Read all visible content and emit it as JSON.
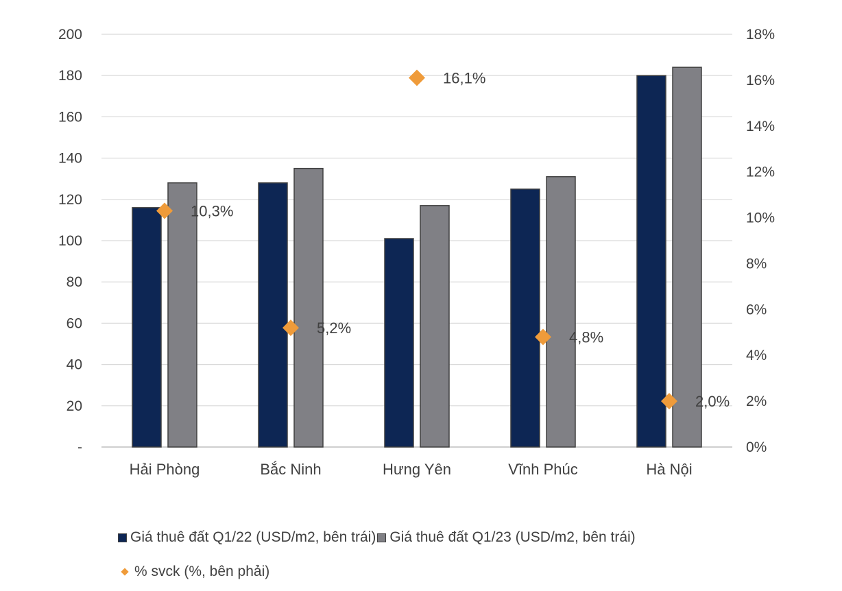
{
  "chart_data": {
    "type": "bar",
    "categories": [
      "Hải Phòng",
      "Bắc Ninh",
      "Hưng Yên",
      "Vĩnh Phúc",
      "Hà Nội"
    ],
    "series": [
      {
        "name": "Giá thuê đất Q1/22 (USD/m2, bên trái)",
        "values": [
          116,
          128,
          101,
          125,
          180
        ],
        "color": "#0d2654",
        "axis": "left"
      },
      {
        "name": "Giá thuê đất Q1/23 (USD/m2, bên trái)",
        "values": [
          128,
          135,
          117,
          131,
          184
        ],
        "color": "#808085",
        "axis": "left"
      },
      {
        "name": "% svck (%, bên phải)",
        "values": [
          10.3,
          5.2,
          16.1,
          4.8,
          2.0
        ],
        "labels": [
          "10,3%",
          "5,2%",
          "16,1%",
          "4,8%",
          "2,0%"
        ],
        "color": "#ef9b3a",
        "axis": "right",
        "marker": "diamond"
      }
    ],
    "y_left": {
      "ylim": [
        0,
        200
      ],
      "ticks": [
        "-",
        "20",
        "40",
        "60",
        "80",
        "100",
        "120",
        "140",
        "160",
        "180",
        "200"
      ]
    },
    "y_right": {
      "ylim": [
        0,
        18
      ],
      "ticks": [
        "0%",
        "2%",
        "4%",
        "6%",
        "8%",
        "10%",
        "12%",
        "14%",
        "16%",
        "18%"
      ]
    },
    "grid": true,
    "legend_position": "bottom"
  },
  "legend": {
    "q122": "Giá thuê đất Q1/22 (USD/m2, bên trái)",
    "q123": "Giá thuê đất Q1/23 (USD/m2, bên trái)",
    "svck": "% svck (%, bên phải)"
  }
}
